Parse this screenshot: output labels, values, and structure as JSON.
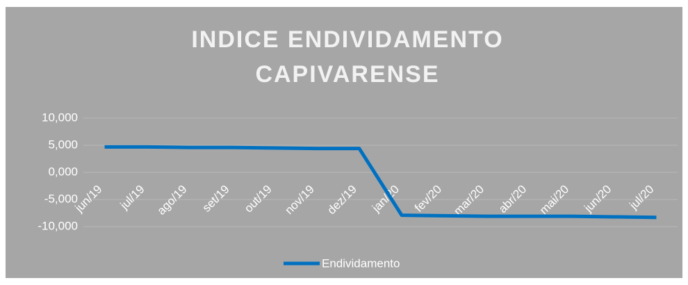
{
  "chart_data": {
    "type": "line",
    "title": [
      "INDICE ENDIVIDAMENTO",
      "CAPIVARENSE"
    ],
    "categories": [
      "jun/19",
      "jul/19",
      "ago/19",
      "set/19",
      "out/19",
      "nov/19",
      "dez/19",
      "jan/20",
      "fev/20",
      "mar/20",
      "abr/20",
      "mai/20",
      "jun/20",
      "jul/20"
    ],
    "series": [
      {
        "name": "Endividamento",
        "color": "#0070c0",
        "values": [
          4.7,
          4.7,
          4.6,
          4.6,
          4.5,
          4.4,
          4.4,
          -7.9,
          -8.0,
          -8.1,
          -8.1,
          -8.1,
          -8.2,
          -8.3
        ]
      }
    ],
    "ylim": [
      -10,
      10
    ],
    "yticks": [
      {
        "value": -10,
        "label": "-10,000"
      },
      {
        "value": -5,
        "label": "-5,000"
      },
      {
        "value": 0,
        "label": "0,000"
      },
      {
        "value": 5,
        "label": "5,000"
      },
      {
        "value": 10,
        "label": "10,000"
      }
    ],
    "grid": true,
    "legend": "bottom"
  }
}
